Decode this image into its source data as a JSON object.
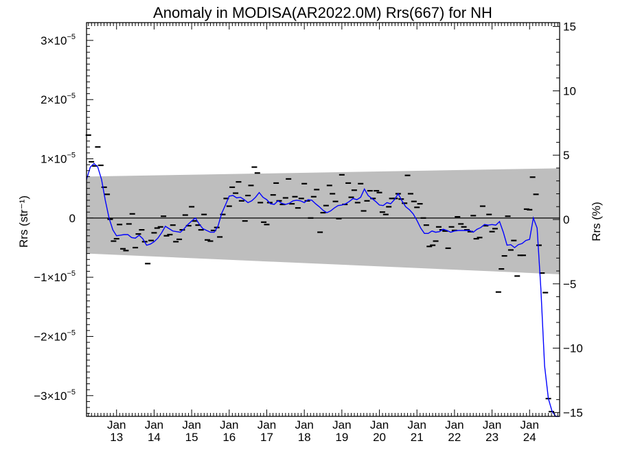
{
  "chart_data": {
    "type": "line",
    "title": "Anomaly in MODISA(AR2022.0M) Rrs(667) for NH",
    "ylabel_left": "Rrs (str⁻¹)",
    "ylabel_right": "Rrs (%)",
    "x_range": [
      2012.2,
      2024.8
    ],
    "y_range": [
      -3.35e-05,
      3.3e-05
    ],
    "y_right_range": [
      -15.3,
      15.3
    ],
    "log_scale": false,
    "grid": false,
    "legend": "none",
    "colors": {
      "series": "#0000ff",
      "points": "#000000",
      "band": "#bebebe",
      "zero_line": "#000000"
    },
    "x_ticks": [
      {
        "x": 2013.0,
        "top": "Jan",
        "bottom": "13"
      },
      {
        "x": 2014.0,
        "top": "Jan",
        "bottom": "14"
      },
      {
        "x": 2015.0,
        "top": "Jan",
        "bottom": "15"
      },
      {
        "x": 2016.0,
        "top": "Jan",
        "bottom": "16"
      },
      {
        "x": 2017.0,
        "top": "Jan",
        "bottom": "17"
      },
      {
        "x": 2018.0,
        "top": "Jan",
        "bottom": "18"
      },
      {
        "x": 2019.0,
        "top": "Jan",
        "bottom": "19"
      },
      {
        "x": 2020.0,
        "top": "Jan",
        "bottom": "20"
      },
      {
        "x": 2021.0,
        "top": "Jan",
        "bottom": "21"
      },
      {
        "x": 2022.0,
        "top": "Jan",
        "bottom": "22"
      },
      {
        "x": 2023.0,
        "top": "Jan",
        "bottom": "23"
      },
      {
        "x": 2024.0,
        "top": "Jan",
        "bottom": "24"
      }
    ],
    "y_ticks_left": [
      {
        "value": 3e-05,
        "mantissa": "3",
        "exponent": "−5",
        "sign": ""
      },
      {
        "value": 2e-05,
        "mantissa": "2",
        "exponent": "−5",
        "sign": ""
      },
      {
        "value": 1e-05,
        "mantissa": "1",
        "exponent": "−5",
        "sign": ""
      },
      {
        "value": 0,
        "mantissa": "0",
        "exponent": "",
        "sign": ""
      },
      {
        "value": -1e-05,
        "mantissa": "1",
        "exponent": "−5",
        "sign": "−"
      },
      {
        "value": -2e-05,
        "mantissa": "2",
        "exponent": "−5",
        "sign": "−"
      },
      {
        "value": -3e-05,
        "mantissa": "3",
        "exponent": "−5",
        "sign": "−"
      }
    ],
    "y_ticks_right": [
      {
        "value": 15,
        "label": "15"
      },
      {
        "value": 10,
        "label": "10"
      },
      {
        "value": 5,
        "label": "5"
      },
      {
        "value": 0,
        "label": "0"
      },
      {
        "value": -5,
        "label": "−5"
      },
      {
        "value": -10,
        "label": "−10"
      },
      {
        "value": -15,
        "label": "−15"
      }
    ],
    "band": {
      "x": [
        2012.2,
        2024.8
      ],
      "upper": [
        7e-06,
        8.4e-06
      ],
      "lower": [
        -6e-06,
        -9.5e-06
      ]
    },
    "points": [
      {
        "x": 2012.25,
        "y": 1.4e-05
      },
      {
        "x": 2012.33,
        "y": 9.5e-06
      },
      {
        "x": 2012.42,
        "y": 8.8e-06
      },
      {
        "x": 2012.5,
        "y": 1.2e-05
      },
      {
        "x": 2012.58,
        "y": 8.9e-06
      },
      {
        "x": 2012.67,
        "y": 5.2e-06
      },
      {
        "x": 2012.75,
        "y": 4e-06
      },
      {
        "x": 2012.83,
        "y": -2e-07
      },
      {
        "x": 2012.92,
        "y": -3.9e-06
      },
      {
        "x": 2013.0,
        "y": -3.5e-06
      },
      {
        "x": 2013.08,
        "y": -1.1e-06
      },
      {
        "x": 2013.17,
        "y": -5.2e-06
      },
      {
        "x": 2013.25,
        "y": -5.5e-06
      },
      {
        "x": 2013.33,
        "y": -1e-06
      },
      {
        "x": 2013.42,
        "y": 7e-07
      },
      {
        "x": 2013.5,
        "y": -5e-06
      },
      {
        "x": 2013.58,
        "y": -2.7e-06
      },
      {
        "x": 2013.67,
        "y": -2e-06
      },
      {
        "x": 2013.75,
        "y": -4e-06
      },
      {
        "x": 2013.83,
        "y": -7.7e-06
      },
      {
        "x": 2013.92,
        "y": -3.8e-06
      },
      {
        "x": 2014.0,
        "y": -2.5e-06
      },
      {
        "x": 2014.08,
        "y": -1.7e-06
      },
      {
        "x": 2014.17,
        "y": -1.5e-06
      },
      {
        "x": 2014.25,
        "y": 3e-07
      },
      {
        "x": 2014.33,
        "y": -3e-06
      },
      {
        "x": 2014.42,
        "y": -2.8e-06
      },
      {
        "x": 2014.5,
        "y": -1.2e-06
      },
      {
        "x": 2014.58,
        "y": -4e-06
      },
      {
        "x": 2014.67,
        "y": -3.6e-06
      },
      {
        "x": 2014.75,
        "y": -2e-06
      },
      {
        "x": 2014.83,
        "y": 5e-07
      },
      {
        "x": 2014.92,
        "y": -1.3e-06
      },
      {
        "x": 2015.0,
        "y": 1.9e-06
      },
      {
        "x": 2015.08,
        "y": -5e-07
      },
      {
        "x": 2015.17,
        "y": -1.2e-06
      },
      {
        "x": 2015.25,
        "y": -2e-06
      },
      {
        "x": 2015.33,
        "y": 6e-07
      },
      {
        "x": 2015.42,
        "y": -3.7e-06
      },
      {
        "x": 2015.5,
        "y": -3.9e-06
      },
      {
        "x": 2015.58,
        "y": -2.1e-06
      },
      {
        "x": 2015.67,
        "y": -1.6e-06
      },
      {
        "x": 2015.75,
        "y": -3.2e-06
      },
      {
        "x": 2015.83,
        "y": 6e-07
      },
      {
        "x": 2015.92,
        "y": 3.3e-06
      },
      {
        "x": 2016.0,
        "y": 2e-06
      },
      {
        "x": 2016.08,
        "y": 5.2e-06
      },
      {
        "x": 2016.17,
        "y": 4.2e-06
      },
      {
        "x": 2016.25,
        "y": 6.1e-06
      },
      {
        "x": 2016.33,
        "y": 2.9e-06
      },
      {
        "x": 2016.42,
        "y": -5e-07
      },
      {
        "x": 2016.5,
        "y": 3.8e-06
      },
      {
        "x": 2016.58,
        "y": 5.5e-06
      },
      {
        "x": 2016.67,
        "y": 8.6e-06
      },
      {
        "x": 2016.75,
        "y": 7.6e-06
      },
      {
        "x": 2016.83,
        "y": 2.6e-06
      },
      {
        "x": 2016.92,
        "y": -7e-07
      },
      {
        "x": 2017.0,
        "y": -1.1e-06
      },
      {
        "x": 2017.08,
        "y": 2.6e-06
      },
      {
        "x": 2017.17,
        "y": 3.9e-06
      },
      {
        "x": 2017.25,
        "y": 5.9e-06
      },
      {
        "x": 2017.33,
        "y": 2.9e-06
      },
      {
        "x": 2017.42,
        "y": 2.3e-06
      },
      {
        "x": 2017.5,
        "y": 3.4e-06
      },
      {
        "x": 2017.58,
        "y": 6.6e-06
      },
      {
        "x": 2017.67,
        "y": 2.4e-06
      },
      {
        "x": 2017.75,
        "y": 3.6e-06
      },
      {
        "x": 2017.83,
        "y": 1.7e-06
      },
      {
        "x": 2017.92,
        "y": 3.3e-06
      },
      {
        "x": 2018.0,
        "y": 5.8e-06
      },
      {
        "x": 2018.08,
        "y": 2.9e-06
      },
      {
        "x": 2018.17,
        "y": 0.0
      },
      {
        "x": 2018.25,
        "y": 3.6e-06
      },
      {
        "x": 2018.33,
        "y": 4.8e-06
      },
      {
        "x": 2018.42,
        "y": -2.4e-06
      },
      {
        "x": 2018.5,
        "y": 9e-07
      },
      {
        "x": 2018.58,
        "y": 2.1e-06
      },
      {
        "x": 2018.67,
        "y": 5.5e-06
      },
      {
        "x": 2018.75,
        "y": 4.1e-06
      },
      {
        "x": 2018.83,
        "y": 2.8e-06
      },
      {
        "x": 2018.92,
        "y": -1e-07
      },
      {
        "x": 2019.0,
        "y": 7.3e-06
      },
      {
        "x": 2019.08,
        "y": 2.3e-06
      },
      {
        "x": 2019.17,
        "y": 5.9e-06
      },
      {
        "x": 2019.25,
        "y": 3.5e-06
      },
      {
        "x": 2019.33,
        "y": 4.7e-06
      },
      {
        "x": 2019.42,
        "y": 2.6e-06
      },
      {
        "x": 2019.5,
        "y": 5.8e-06
      },
      {
        "x": 2019.58,
        "y": 1.2e-06
      },
      {
        "x": 2019.67,
        "y": 2.9e-06
      },
      {
        "x": 2019.75,
        "y": 4.6e-06
      },
      {
        "x": 2019.83,
        "y": 3.3e-06
      },
      {
        "x": 2019.92,
        "y": 4.6e-06
      },
      {
        "x": 2020.0,
        "y": 4.3e-06
      },
      {
        "x": 2020.08,
        "y": 1e-06
      },
      {
        "x": 2020.17,
        "y": 6e-07
      },
      {
        "x": 2020.25,
        "y": 1.9e-06
      },
      {
        "x": 2020.33,
        "y": 3.3e-06
      },
      {
        "x": 2020.42,
        "y": 3.3e-06
      },
      {
        "x": 2020.5,
        "y": 4.1e-06
      },
      {
        "x": 2020.58,
        "y": 3.2e-06
      },
      {
        "x": 2020.67,
        "y": 2.5e-06
      },
      {
        "x": 2020.75,
        "y": 7.2e-06
      },
      {
        "x": 2020.83,
        "y": 4.1e-06
      },
      {
        "x": 2020.92,
        "y": 2.8e-06
      },
      {
        "x": 2021.0,
        "y": 1.8e-06
      },
      {
        "x": 2021.08,
        "y": 2.4e-06
      },
      {
        "x": 2021.17,
        "y": 0.0
      },
      {
        "x": 2021.25,
        "y": -1.2e-06
      },
      {
        "x": 2021.33,
        "y": -4.8e-06
      },
      {
        "x": 2021.42,
        "y": -4.6e-06
      },
      {
        "x": 2021.5,
        "y": -3.9e-06
      },
      {
        "x": 2021.58,
        "y": -1.5e-06
      },
      {
        "x": 2021.67,
        "y": -2e-06
      },
      {
        "x": 2021.75,
        "y": -2.2e-06
      },
      {
        "x": 2021.83,
        "y": -5.1e-06
      },
      {
        "x": 2021.92,
        "y": -1.5e-06
      },
      {
        "x": 2022.0,
        "y": -2.1e-06
      },
      {
        "x": 2022.08,
        "y": 2e-07
      },
      {
        "x": 2022.17,
        "y": -1e-06
      },
      {
        "x": 2022.25,
        "y": -1.5e-06
      },
      {
        "x": 2022.33,
        "y": -2e-06
      },
      {
        "x": 2022.42,
        "y": -2.3e-06
      },
      {
        "x": 2022.5,
        "y": 4e-07
      },
      {
        "x": 2022.58,
        "y": -3.5e-06
      },
      {
        "x": 2022.67,
        "y": -3.3e-06
      },
      {
        "x": 2022.75,
        "y": 2e-06
      },
      {
        "x": 2022.83,
        "y": -1.3e-06
      },
      {
        "x": 2022.92,
        "y": 6e-07
      },
      {
        "x": 2023.0,
        "y": -2.3e-06
      },
      {
        "x": 2023.08,
        "y": -1.8e-06
      },
      {
        "x": 2023.17,
        "y": -1.25e-05
      },
      {
        "x": 2023.25,
        "y": -8.6e-06
      },
      {
        "x": 2023.33,
        "y": -6.4e-06
      },
      {
        "x": 2023.42,
        "y": 3e-07
      },
      {
        "x": 2023.5,
        "y": -5.4e-06
      },
      {
        "x": 2023.58,
        "y": -3.8e-06
      },
      {
        "x": 2023.67,
        "y": -9.8e-06
      },
      {
        "x": 2023.75,
        "y": -6.3e-06
      },
      {
        "x": 2023.83,
        "y": -6.3e-06
      },
      {
        "x": 2023.92,
        "y": 1.5e-06
      },
      {
        "x": 2024.0,
        "y": 1.4e-06
      },
      {
        "x": 2024.08,
        "y": 6.9e-06
      },
      {
        "x": 2024.17,
        "y": 4e-06
      },
      {
        "x": 2024.25,
        "y": -4.6e-06
      },
      {
        "x": 2024.33,
        "y": -9.3e-06
      },
      {
        "x": 2024.42,
        "y": -1.26e-05
      },
      {
        "x": 2024.5,
        "y": -3.05e-05
      },
      {
        "x": 2024.58,
        "y": -3.27e-05
      }
    ],
    "series": [
      {
        "x": [
          2012.2,
          2012.3,
          2012.4,
          2012.5,
          2012.6,
          2012.7,
          2012.8,
          2012.9,
          2013.0,
          2013.1,
          2013.2,
          2013.3,
          2013.4,
          2013.5,
          2013.6,
          2013.7,
          2013.8,
          2013.9,
          2014.0,
          2014.1,
          2014.2,
          2014.3,
          2014.4,
          2014.5,
          2014.6,
          2014.7,
          2014.8,
          2014.9,
          2015.0,
          2015.1,
          2015.2,
          2015.3,
          2015.4,
          2015.5,
          2015.6,
          2015.7,
          2015.8,
          2015.9,
          2016.0,
          2016.1,
          2016.2,
          2016.3,
          2016.4,
          2016.5,
          2016.6,
          2016.7,
          2016.8,
          2016.9,
          2017.0,
          2017.1,
          2017.2,
          2017.3,
          2017.4,
          2017.5,
          2017.6,
          2017.7,
          2017.8,
          2017.9,
          2018.0,
          2018.1,
          2018.2,
          2018.3,
          2018.4,
          2018.5,
          2018.6,
          2018.7,
          2018.8,
          2018.9,
          2019.0,
          2019.1,
          2019.2,
          2019.3,
          2019.4,
          2019.5,
          2019.6,
          2019.7,
          2019.8,
          2019.9,
          2020.0,
          2020.1,
          2020.2,
          2020.3,
          2020.4,
          2020.5,
          2020.6,
          2020.7,
          2020.8,
          2020.9,
          2021.0,
          2021.1,
          2021.2,
          2021.3,
          2021.4,
          2021.5,
          2021.6,
          2021.7,
          2021.8,
          2021.9,
          2022.0,
          2022.1,
          2022.2,
          2022.3,
          2022.4,
          2022.5,
          2022.6,
          2022.7,
          2022.8,
          2022.9,
          2023.0,
          2023.1,
          2023.2,
          2023.3,
          2023.4,
          2023.5,
          2023.6,
          2023.7,
          2023.8,
          2023.9,
          2024.0,
          2024.1,
          2024.2,
          2024.3,
          2024.4,
          2024.5,
          2024.6,
          2024.7,
          2024.78
        ],
        "y": [
          6.5e-06,
          8.6e-06,
          9.2e-06,
          8.6e-06,
          6.5e-06,
          3e-06,
          0.0,
          -2e-06,
          -3e-06,
          -2.9e-06,
          -2.8e-06,
          -2.8e-06,
          -3.3e-06,
          -3.4e-06,
          -2.9e-06,
          -3.5e-06,
          -4.6e-06,
          -4.4e-06,
          -4e-06,
          -3.4e-06,
          -2.5e-06,
          -1.4e-06,
          -1.8e-06,
          -2.2e-06,
          -2.3e-06,
          -2.4e-06,
          -1.8e-06,
          -1.1e-06,
          -5e-07,
          0.0,
          -1e-06,
          -1.8e-06,
          -2.1e-06,
          -2.4e-06,
          -2.4e-06,
          -1.4e-06,
          8e-07,
          2.2e-06,
          3.7e-06,
          3.8e-06,
          3.4e-06,
          3.5e-06,
          3.1e-06,
          2.6e-06,
          2.9e-06,
          3.5e-06,
          4.3e-06,
          3.5e-06,
          3.1e-06,
          2.4e-06,
          2.3e-06,
          2.9e-06,
          2.5e-06,
          2.3e-06,
          2.5e-06,
          2.9e-06,
          3e-06,
          2.9e-06,
          2.6e-06,
          3.1e-06,
          3e-06,
          2.4e-06,
          1.9e-06,
          1.3e-06,
          9e-07,
          1.2e-06,
          1.7e-06,
          2.1e-06,
          2.2e-06,
          2.4e-06,
          2.8e-06,
          3.3e-06,
          3.1e-06,
          3.5e-06,
          4.9e-06,
          3.8e-06,
          3.3e-06,
          2.8e-06,
          2.2e-06,
          2.1e-06,
          2.6e-06,
          2.4e-06,
          3.1e-06,
          4.1e-06,
          2.9e-06,
          1.9e-06,
          1.4e-06,
          7e-07,
          -4e-07,
          -1.7e-06,
          -2.6e-06,
          -2.6e-06,
          -2.2e-06,
          -2.4e-06,
          -2.3e-06,
          -1.9e-06,
          -2.1e-06,
          -2.4e-06,
          -2.2e-06,
          -2.1e-06,
          -2.1e-06,
          -2.1e-06,
          -2.1e-06,
          -2.4e-06,
          -1.9e-06,
          -1.6e-06,
          -1.1e-06,
          -1.2e-06,
          -1.1e-06,
          -1.2e-06,
          -6e-07,
          -2.4e-06,
          -4.6e-06,
          -4.5e-06,
          -5e-06,
          -4.5e-06,
          -4.3e-06,
          -3.8e-06,
          -3.6e-06,
          0.0,
          -1.7e-06,
          -1.2e-05,
          -2.5e-05,
          -3.05e-05,
          -3.27e-05,
          -3.4e-05,
          -3.45e-05
        ]
      }
    ]
  }
}
